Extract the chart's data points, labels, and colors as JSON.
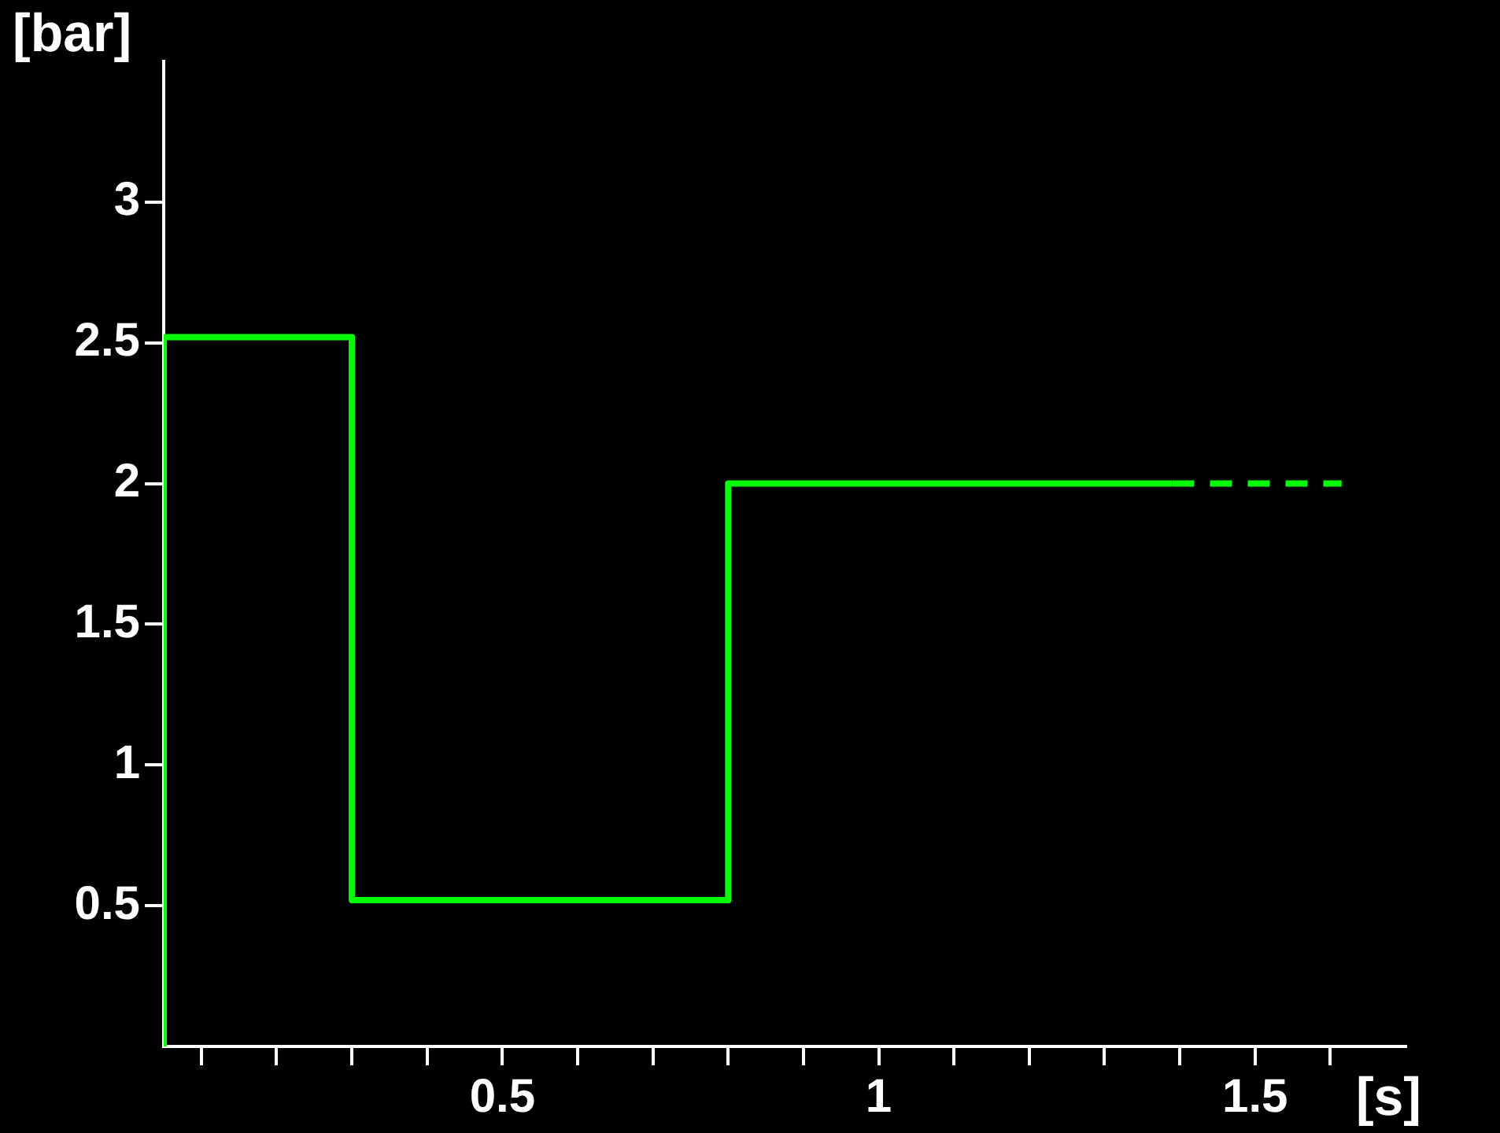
{
  "chart_data": {
    "type": "step",
    "xlabel": "[s]",
    "ylabel": "[bar]",
    "xlim": [
      0.05,
      1.7
    ],
    "xticks": [
      {
        "value": 0.1,
        "label": null
      },
      {
        "value": 0.2,
        "label": null
      },
      {
        "value": 0.3,
        "label": null
      },
      {
        "value": 0.4,
        "label": null
      },
      0.5,
      {
        "value": 0.6,
        "label": null
      },
      {
        "value": 0.7,
        "label": null
      },
      {
        "value": 0.8,
        "label": null
      },
      {
        "value": 0.9,
        "label": null
      },
      1,
      {
        "value": 1.1,
        "label": null
      },
      {
        "value": 1.2,
        "label": null
      },
      {
        "value": 1.3,
        "label": null
      },
      {
        "value": 1.4,
        "label": null
      },
      1.5,
      {
        "value": 1.6,
        "label": null
      }
    ],
    "ylim": [
      0,
      3.5
    ],
    "yticks": [
      0.5,
      1,
      1.5,
      2,
      2.5,
      3
    ],
    "grid": false,
    "legend": false,
    "marker": "none",
    "series": [
      {
        "color": "#00ff00",
        "line_style": "solid",
        "x": [
          0.05,
          0.05,
          0.3,
          0.8,
          1.39
        ],
        "values": [
          0,
          2.52,
          0.52,
          2,
          2
        ]
      },
      {
        "color": "#00ff00",
        "line_style": "dashed",
        "x": [
          1.39,
          1.615
        ],
        "values": [
          2,
          2
        ]
      }
    ]
  }
}
